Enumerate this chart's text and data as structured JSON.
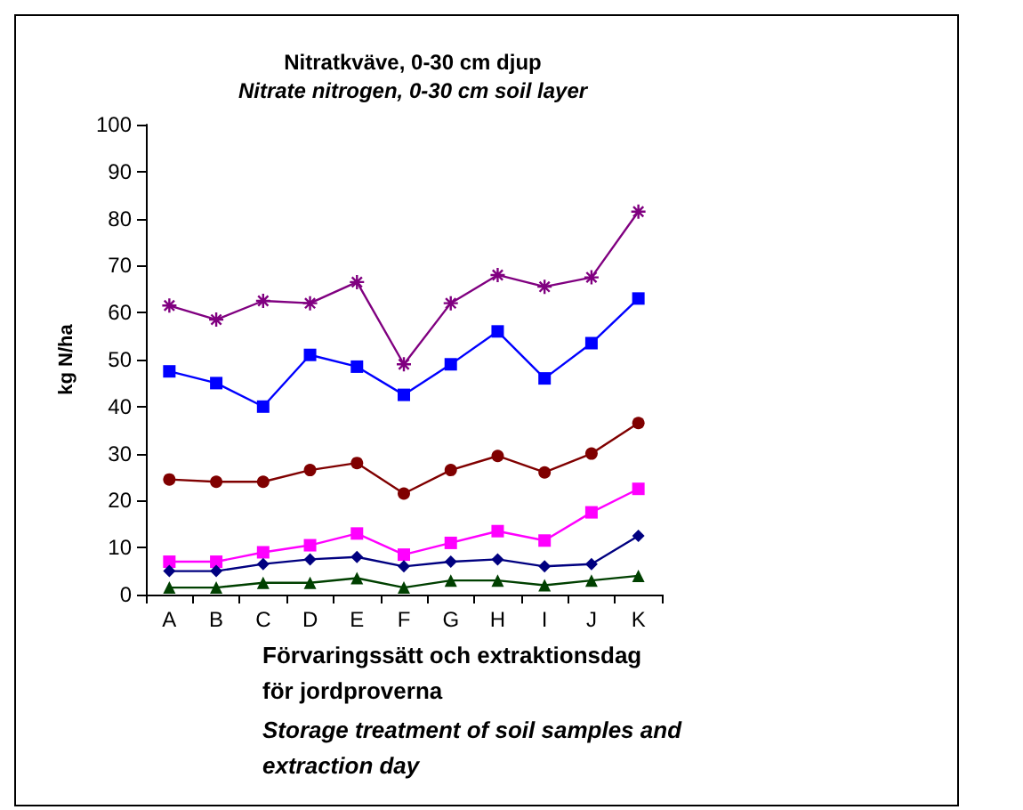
{
  "chart_data": {
    "type": "line",
    "title": "Nitratkväve, 0-30 cm djup",
    "subtitle": "Nitrate nitrogen, 0-30 cm soil layer",
    "xlabel": "Förvaringssätt och extraktionsdag för jordproverna",
    "ylabel": "kg N/ha",
    "annotations": [
      "Storage treatment of soil samples and extraction day"
    ],
    "categories": [
      "A",
      "B",
      "C",
      "D",
      "E",
      "F",
      "G",
      "H",
      "I",
      "J",
      "K"
    ],
    "series": [
      {
        "color": "#800080",
        "marker": "cross",
        "values": [
          61.5,
          58.5,
          62.5,
          62,
          66.5,
          49,
          62,
          68,
          65.5,
          67.5,
          81.5
        ]
      },
      {
        "color": "#0000ff",
        "marker": "square",
        "values": [
          47.5,
          45,
          40,
          51,
          48.5,
          42.5,
          49,
          56,
          46,
          53.5,
          63
        ]
      },
      {
        "color": "#800000",
        "marker": "circle",
        "values": [
          24.5,
          24,
          24,
          26.5,
          28,
          21.5,
          26.5,
          29.5,
          26,
          30,
          36.5
        ]
      },
      {
        "color": "#ff00ff",
        "marker": "square",
        "values": [
          7,
          7,
          9,
          10.5,
          13,
          8.5,
          11,
          13.5,
          11.5,
          17.5,
          22.5
        ]
      },
      {
        "color": "#000080",
        "marker": "diamond",
        "values": [
          5,
          5,
          6.5,
          7.5,
          8,
          6,
          7,
          7.5,
          6,
          6.5,
          12.5
        ]
      },
      {
        "color": "#004000",
        "marker": "triangle",
        "values": [
          1.5,
          1.5,
          2.5,
          2.5,
          3.5,
          1.5,
          3,
          3,
          2,
          3,
          4
        ]
      }
    ],
    "ylim": [
      0,
      100
    ],
    "yticks": [
      0,
      10,
      20,
      30,
      40,
      50,
      60,
      70,
      80,
      90,
      100
    ],
    "grid": false,
    "line_style": "solid"
  }
}
